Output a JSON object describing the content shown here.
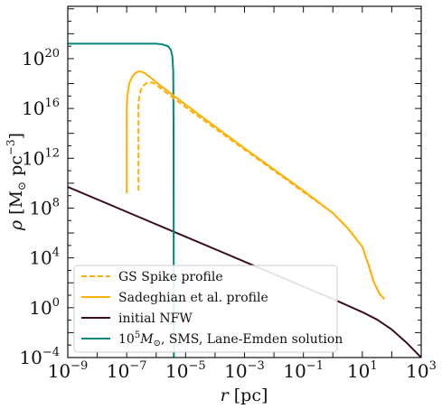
{
  "chart_data": {
    "type": "line",
    "xscale": "log",
    "yscale": "log",
    "xlim_exp": [
      -9,
      3
    ],
    "ylim_exp": [
      -4,
      24.2
    ],
    "xlabel": {
      "var": "r",
      "unit": "[pc]"
    },
    "ylabel": {
      "var": "ρ",
      "unit_pre": "[M",
      "unit_sub": "⊙",
      "unit_mid": " pc",
      "unit_sup": "−3",
      "unit_post": "]"
    },
    "x_ticks": [
      {
        "base": "10",
        "exp": "−9",
        "value": -9
      },
      {
        "base": "10",
        "exp": "−7",
        "value": -7
      },
      {
        "base": "10",
        "exp": "−5",
        "value": -5
      },
      {
        "base": "10",
        "exp": "−3",
        "value": -3
      },
      {
        "base": "10",
        "exp": "−1",
        "value": -1
      },
      {
        "base": "10",
        "exp": "1",
        "value": 1
      },
      {
        "base": "10",
        "exp": "3",
        "value": 3
      }
    ],
    "y_ticks": [
      {
        "base": "10",
        "exp": "−4",
        "value": -4
      },
      {
        "base": "10",
        "exp": "0",
        "value": 0
      },
      {
        "base": "10",
        "exp": "4",
        "value": 4
      },
      {
        "base": "10",
        "exp": "8",
        "value": 8
      },
      {
        "base": "10",
        "exp": "12",
        "value": 12
      },
      {
        "base": "10",
        "exp": "16",
        "value": 16
      },
      {
        "base": "10",
        "exp": "20",
        "value": 20
      }
    ],
    "series": [
      {
        "name": "GS Spike profile",
        "color": "#FFB000",
        "dash": true,
        "points_log": [
          [
            -6.6,
            9.4
          ],
          [
            -6.6,
            16.5
          ],
          [
            -6.55,
            17.2
          ],
          [
            -6.5,
            17.6
          ],
          [
            -6.45,
            17.8
          ],
          [
            -6.4,
            17.9
          ],
          [
            -6.3,
            18.05
          ],
          [
            -6.2,
            18.1
          ],
          [
            -6.1,
            18.05
          ],
          [
            -6.0,
            17.9
          ],
          [
            -5.7,
            17.35
          ],
          [
            -5.0,
            16.1
          ],
          [
            -4.0,
            14.4
          ],
          [
            -3.0,
            12.7
          ],
          [
            -2.0,
            11.0
          ],
          [
            -1.0,
            9.3
          ],
          [
            0.0,
            7.6
          ],
          [
            0.5,
            6.4
          ],
          [
            1.0,
            4.9
          ],
          [
            1.2,
            3.5
          ],
          [
            1.4,
            2.0
          ],
          [
            1.6,
            1.05
          ],
          [
            1.75,
            0.7
          ]
        ]
      },
      {
        "name": "Sadeghian et al. profile",
        "color": "#FFB000",
        "dash": false,
        "points_log": [
          [
            -7.0,
            9.2
          ],
          [
            -7.0,
            16.0
          ],
          [
            -6.98,
            17.0
          ],
          [
            -6.95,
            17.5
          ],
          [
            -6.9,
            18.1
          ],
          [
            -6.8,
            18.6
          ],
          [
            -6.7,
            18.85
          ],
          [
            -6.6,
            18.97
          ],
          [
            -6.5,
            18.95
          ],
          [
            -6.4,
            18.85
          ],
          [
            -6.2,
            18.5
          ],
          [
            -6.0,
            18.1
          ],
          [
            -5.0,
            16.3
          ],
          [
            -4.0,
            14.55
          ],
          [
            -3.0,
            12.8
          ],
          [
            -2.0,
            11.1
          ],
          [
            -1.0,
            9.4
          ],
          [
            0.0,
            7.6
          ],
          [
            0.5,
            6.4
          ],
          [
            1.0,
            4.9
          ],
          [
            1.2,
            3.5
          ],
          [
            1.4,
            2.0
          ],
          [
            1.6,
            1.05
          ],
          [
            1.75,
            0.7
          ]
        ]
      },
      {
        "name": "initial NFW",
        "color": "#3B0F1A",
        "dash": false,
        "points_log": [
          [
            -9.0,
            9.7
          ],
          [
            -7.0,
            7.7
          ],
          [
            -5.0,
            5.7
          ],
          [
            -3.0,
            3.7
          ],
          [
            -1.0,
            1.7
          ],
          [
            0.0,
            0.7
          ],
          [
            1.0,
            -0.35
          ],
          [
            1.5,
            -0.95
          ],
          [
            2.0,
            -1.75
          ],
          [
            2.5,
            -2.8
          ],
          [
            3.0,
            -4.0
          ]
        ]
      },
      {
        "name": "10^5 M⊙ SMS, Lane-Emden solution",
        "color": "#00897B",
        "dash": false,
        "points_log": [
          [
            -9.0,
            21.2
          ],
          [
            -6.0,
            21.2
          ],
          [
            -5.8,
            21.15
          ],
          [
            -5.6,
            21.0
          ],
          [
            -5.5,
            20.7
          ],
          [
            -5.45,
            20.2
          ],
          [
            -5.42,
            19.0
          ],
          [
            -5.41,
            15.0
          ],
          [
            -5.4,
            -4.0
          ]
        ]
      }
    ],
    "legend": {
      "placement": "lower-left",
      "entries": [
        {
          "label": "GS Spike profile",
          "color": "#FFB000",
          "dash": true
        },
        {
          "label": "Sadeghian et al. profile",
          "color": "#FFB000",
          "dash": false
        },
        {
          "label": "initial NFW",
          "color": "#3B0F1A",
          "dash": false
        },
        {
          "label_pre": "10",
          "label_sup": "5",
          "label_mid": "M",
          "label_sub": "⊙",
          "label_post": ", SMS, Lane-Emden solution",
          "color": "#00897B",
          "dash": false
        }
      ]
    }
  }
}
